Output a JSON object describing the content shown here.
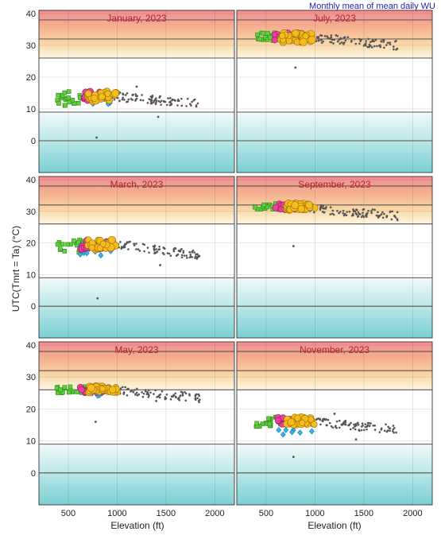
{
  "figure_title": "Monthly mean of mean daily WU",
  "ylabel": "UTC(Tmrt = Ta) (°C)",
  "xlabel": "Elevation (ft)",
  "colors": {
    "title_blue": "#1f1fb4",
    "panel_title": "#b8202e",
    "hot_top": "#f29a9a",
    "hot_mid": "#f6c49a",
    "hot_low": "#fdf3d6",
    "cold_top": "#eef9f9",
    "cold_bottom": "#7fd1d4",
    "green": "#5ecf3c",
    "magenta": "#e9409a",
    "orange": "#f5bc1c",
    "cyan": "#34b6e8",
    "gray": "#555555"
  },
  "chart_data": [
    {
      "type": "scatter",
      "title": "January, 2023",
      "xlim": [
        200,
        2200
      ],
      "ylim": [
        -10,
        41
      ],
      "xticks": [
        500,
        1000,
        1500,
        2000
      ],
      "yticks": [
        0,
        10,
        20,
        30,
        40
      ],
      "threshold_lines": [
        0,
        9,
        26,
        32,
        38
      ],
      "hot_band": [
        26,
        41
      ],
      "cold_band": [
        -10,
        9
      ],
      "green_clusters": [
        {
          "x": [
            380,
            650
          ],
          "y": [
            11,
            15.5
          ]
        }
      ],
      "magenta_cluster": {
        "x": [
          640,
          880
        ],
        "y": [
          12.5,
          15.5
        ]
      },
      "orange_cluster": {
        "x": [
          700,
          990
        ],
        "y": [
          12.5,
          15.5
        ]
      },
      "cyan_cluster": {
        "x": [
          620,
          960
        ],
        "y": [
          11.5,
          15
        ]
      },
      "gray_trend": {
        "x": [
          950,
          1850
        ],
        "y_start": 14,
        "y_end": 11.5
      },
      "outliers": [
        {
          "x": 790,
          "y": 1
        },
        {
          "x": 1200,
          "y": 17
        },
        {
          "x": 1420,
          "y": 7.5
        }
      ]
    },
    {
      "type": "scatter",
      "title": "July, 2023",
      "xlim": [
        200,
        2200
      ],
      "ylim": [
        -10,
        41
      ],
      "xticks": [
        500,
        1000,
        1500,
        2000
      ],
      "yticks": [
        0,
        10,
        20,
        30,
        40
      ],
      "threshold_lines": [
        0,
        9,
        26,
        32,
        38
      ],
      "hot_band": [
        26,
        41
      ],
      "cold_band": [
        -10,
        9
      ],
      "green_clusters": [
        {
          "x": [
            380,
            700
          ],
          "y": [
            31.5,
            34
          ]
        }
      ],
      "magenta_cluster": {
        "x": [
          580,
          880
        ],
        "y": [
          31,
          34
        ]
      },
      "orange_cluster": {
        "x": [
          650,
          980
        ],
        "y": [
          31,
          34
        ]
      },
      "cyan_cluster": {
        "x": [
          700,
          1000
        ],
        "y": [
          31.5,
          33.5
        ]
      },
      "gray_trend": {
        "x": [
          950,
          1850
        ],
        "y_start": 32.5,
        "y_end": 30
      },
      "outliers": [
        {
          "x": 800,
          "y": 23
        }
      ]
    },
    {
      "type": "scatter",
      "title": "March, 2023",
      "xlim": [
        200,
        2200
      ],
      "ylim": [
        -10,
        41
      ],
      "xticks": [
        500,
        1000,
        1500,
        2000
      ],
      "yticks": [
        0,
        10,
        20,
        30,
        40
      ],
      "threshold_lines": [
        0,
        9,
        26,
        32,
        38
      ],
      "hot_band": [
        26,
        41
      ],
      "cold_band": [
        -10,
        9
      ],
      "green_clusters": [
        {
          "x": [
            380,
            700
          ],
          "y": [
            17,
            21
          ]
        }
      ],
      "magenta_cluster": {
        "x": [
          620,
          900
        ],
        "y": [
          18,
          21
        ]
      },
      "orange_cluster": {
        "x": [
          700,
          1000
        ],
        "y": [
          18,
          21
        ]
      },
      "cyan_cluster": {
        "x": [
          620,
          980
        ],
        "y": [
          15.5,
          20
        ]
      },
      "gray_trend": {
        "x": [
          950,
          1850
        ],
        "y_start": 20,
        "y_end": 16
      },
      "outliers": [
        {
          "x": 800,
          "y": 2.5
        },
        {
          "x": 1440,
          "y": 13
        }
      ]
    },
    {
      "type": "scatter",
      "title": "September, 2023",
      "xlim": [
        200,
        2200
      ],
      "ylim": [
        -10,
        41
      ],
      "xticks": [
        500,
        1000,
        1500,
        2000
      ],
      "yticks": [
        0,
        10,
        20,
        30,
        40
      ],
      "threshold_lines": [
        0,
        9,
        26,
        32,
        38
      ],
      "hot_band": [
        26,
        41
      ],
      "cold_band": [
        -10,
        9
      ],
      "green_clusters": [
        {
          "x": [
            380,
            700
          ],
          "y": [
            30.5,
            32.5
          ]
        }
      ],
      "magenta_cluster": {
        "x": [
          600,
          900
        ],
        "y": [
          30.5,
          32.5
        ]
      },
      "orange_cluster": {
        "x": [
          700,
          1000
        ],
        "y": [
          30.5,
          32.5
        ]
      },
      "cyan_cluster": {
        "x": [
          650,
          1000
        ],
        "y": [
          30,
          32
        ]
      },
      "gray_trend": {
        "x": [
          950,
          1850
        ],
        "y_start": 31,
        "y_end": 28.5
      },
      "outliers": [
        {
          "x": 780,
          "y": 19
        }
      ]
    },
    {
      "type": "scatter",
      "title": "May, 2023",
      "xlim": [
        200,
        2200
      ],
      "ylim": [
        -10,
        41
      ],
      "xticks": [
        500,
        1000,
        1500,
        2000
      ],
      "yticks": [
        0,
        10,
        20,
        30,
        40
      ],
      "threshold_lines": [
        0,
        9,
        26,
        32,
        38
      ],
      "hot_band": [
        26,
        41
      ],
      "cold_band": [
        -10,
        9
      ],
      "green_clusters": [
        {
          "x": [
            380,
            700
          ],
          "y": [
            25,
            27
          ]
        }
      ],
      "magenta_cluster": {
        "x": [
          620,
          900
        ],
        "y": [
          25,
          27
        ]
      },
      "orange_cluster": {
        "x": [
          700,
          1000
        ],
        "y": [
          25,
          27.2
        ]
      },
      "cyan_cluster": {
        "x": [
          620,
          980
        ],
        "y": [
          24,
          26.5
        ]
      },
      "gray_trend": {
        "x": [
          950,
          1850
        ],
        "y_start": 26,
        "y_end": 23.5
      },
      "outliers": [
        {
          "x": 780,
          "y": 16
        },
        {
          "x": 1400,
          "y": 22.5
        }
      ]
    },
    {
      "type": "scatter",
      "title": "November, 2023",
      "xlim": [
        200,
        2200
      ],
      "ylim": [
        -10,
        41
      ],
      "xticks": [
        500,
        1000,
        1500,
        2000
      ],
      "yticks": [
        0,
        10,
        20,
        30,
        40
      ],
      "threshold_lines": [
        0,
        9,
        26,
        32,
        38
      ],
      "hot_band": [
        26,
        41
      ],
      "cold_band": [
        -10,
        9
      ],
      "green_clusters": [
        {
          "x": [
            380,
            700
          ],
          "y": [
            14.5,
            17.5
          ]
        }
      ],
      "magenta_cluster": {
        "x": [
          620,
          900
        ],
        "y": [
          15,
          17.5
        ]
      },
      "orange_cluster": {
        "x": [
          700,
          1000
        ],
        "y": [
          15,
          17.5
        ]
      },
      "cyan_cluster": {
        "x": [
          620,
          980
        ],
        "y": [
          12,
          16
        ]
      },
      "gray_trend": {
        "x": [
          950,
          1850
        ],
        "y_start": 16,
        "y_end": 13.5
      },
      "outliers": [
        {
          "x": 780,
          "y": 5
        },
        {
          "x": 1200,
          "y": 18.5
        },
        {
          "x": 1420,
          "y": 10.5
        }
      ]
    }
  ]
}
